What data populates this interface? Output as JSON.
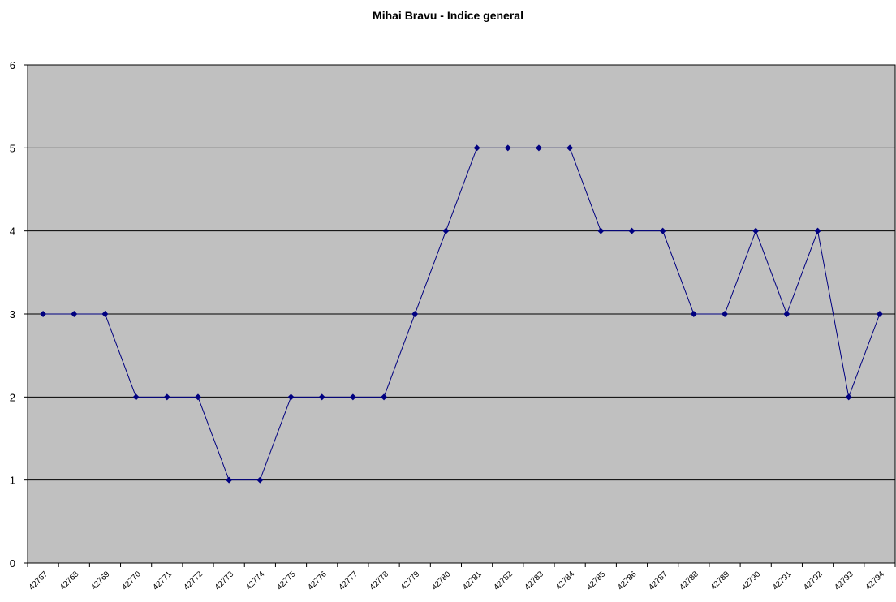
{
  "chart_data": {
    "type": "line",
    "title": "Mihai Bravu - Indice general",
    "categories": [
      "42767",
      "42768",
      "42769",
      "42770",
      "42771",
      "42772",
      "42773",
      "42774",
      "42775",
      "42776",
      "42777",
      "42778",
      "42779",
      "42780",
      "42781",
      "42782",
      "42783",
      "42784",
      "42785",
      "42786",
      "42787",
      "42788",
      "42789",
      "42790",
      "42791",
      "42792",
      "42793",
      "42794"
    ],
    "series": [
      {
        "name": "Indice general",
        "color": "#000080",
        "values": [
          3,
          3,
          3,
          2,
          2,
          2,
          1,
          1,
          2,
          2,
          2,
          2,
          3,
          4,
          5,
          5,
          5,
          5,
          4,
          4,
          4,
          3,
          3,
          4,
          3,
          4,
          2,
          3
        ]
      }
    ],
    "ylim": [
      0,
      6
    ],
    "yticks": [
      0,
      1,
      2,
      3,
      4,
      5,
      6
    ],
    "grid": true,
    "plot_background": "#c0c0c0"
  }
}
